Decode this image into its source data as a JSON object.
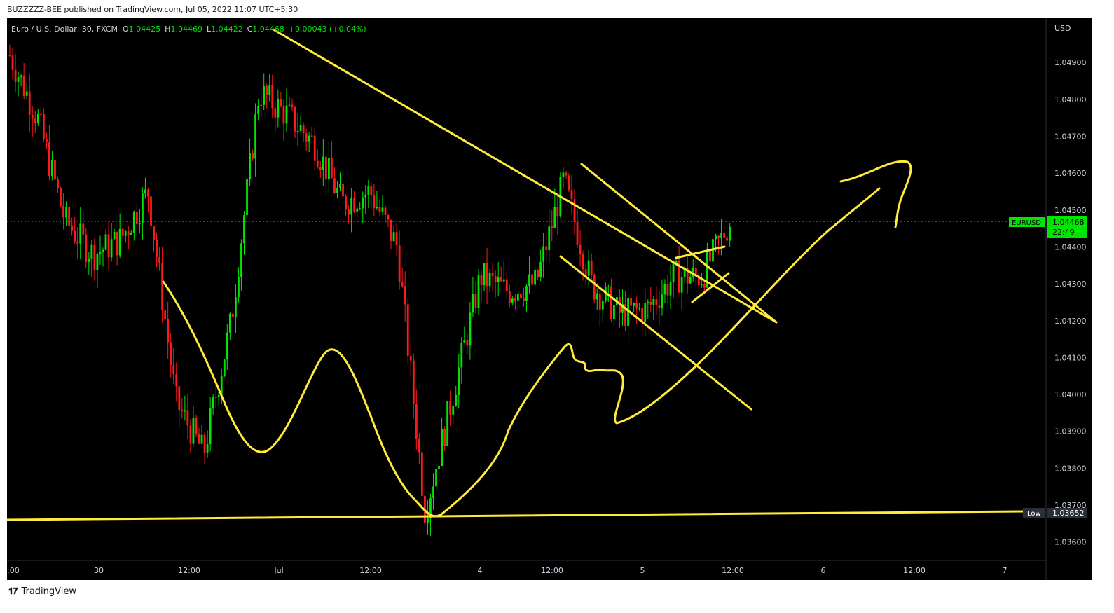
{
  "header": {
    "published_line": "BUZZZZZ-BEE published on TradingView.com, Jul 05, 2022 11:07 UTC+5:30"
  },
  "legend": {
    "symbol_line": "Euro / U.S. Dollar, 30, FXCM",
    "o_label": "O",
    "o_value": "1.04425",
    "h_label": "H",
    "h_value": "1.04469",
    "l_label": "L",
    "l_value": "1.04422",
    "c_label": "C",
    "c_value": "1.04468",
    "change": "+0.00043 (+0.04%)"
  },
  "price_axis": {
    "currency": "USD",
    "ticks": [
      "1.04900",
      "1.04800",
      "1.04700",
      "1.04600",
      "1.04500",
      "1.04400",
      "1.04300",
      "1.04200",
      "1.04100",
      "1.04000",
      "1.03900",
      "1.03800",
      "1.03700",
      "1.03600"
    ],
    "last_symbol": "EURUSD",
    "last_price": "1.04468",
    "countdown": "22:49",
    "low_label": "Low",
    "low_value": "1.03652"
  },
  "time_axis": {
    "labels": [
      ":00",
      "30",
      "12:00",
      "Jul",
      "12:00",
      "4",
      "12:00",
      "5",
      "12:00",
      "6",
      "12:00",
      "7"
    ]
  },
  "footer": {
    "brand": "TradingView"
  },
  "colors": {
    "up": "#00e600",
    "down": "#ff1a1a",
    "drawing": "#ffeb3b",
    "background": "#000000",
    "last_price_bg": "#00e600"
  },
  "chart_data": {
    "type": "candlestick",
    "symbol": "EURUSD",
    "timeframe": "30",
    "ylim": [
      1.0355,
      1.0502
    ],
    "y_ticks": [
      1.049,
      1.048,
      1.047,
      1.046,
      1.045,
      1.044,
      1.043,
      1.042,
      1.041,
      1.04,
      1.039,
      1.038,
      1.037,
      1.036
    ],
    "last_price": 1.04468,
    "low": 1.03652,
    "series": [
      {
        "name": "close",
        "x": [
          "Jun 29 22:00",
          "Jun 30 00:00",
          "Jun 30 03:00",
          "Jun 30 06:00",
          "Jun 30 09:00",
          "Jun 30 12:00",
          "Jun 30 15:00",
          "Jun 30 18:00",
          "Jun 30 20:00",
          "Jul 1 00:00",
          "Jul 1 03:00",
          "Jul 1 06:00",
          "Jul 1 09:00",
          "Jul 1 12:00",
          "Jul 1 15:00",
          "Jul 1 19:00",
          "Jul 1 22:00",
          "Jul 4 02:00",
          "Jul 4 06:00",
          "Jul 4 10:00",
          "Jul 4 13:00",
          "Jul 4 17:00",
          "Jul 4 21:00",
          "Jul 5 01:00",
          "Jul 5 04:00",
          "Jul 5 07:00",
          "Jul 5 09:30"
        ],
        "values": [
          1.0492,
          1.0475,
          1.0447,
          1.0438,
          1.0442,
          1.0455,
          1.0398,
          1.0384,
          1.042,
          1.0482,
          1.0476,
          1.0468,
          1.0452,
          1.0455,
          1.044,
          1.0368,
          1.04,
          1.0432,
          1.0428,
          1.043,
          1.0458,
          1.043,
          1.0422,
          1.0423,
          1.0432,
          1.0432,
          1.04468
        ]
      }
    ],
    "annotations": [
      "descending trendline",
      "descending channel",
      "rising wedge",
      "horizontal support at low",
      "projected bullish path"
    ]
  }
}
